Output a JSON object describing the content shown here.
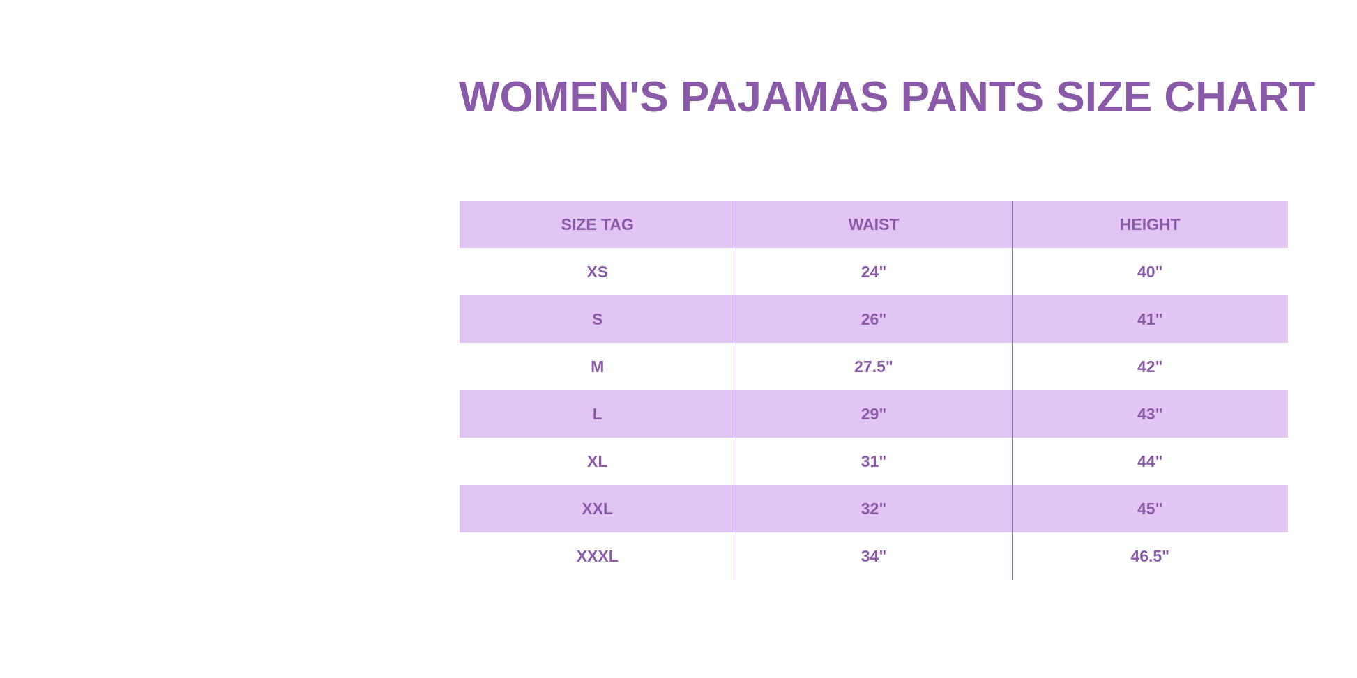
{
  "title": "WOMEN'S PAJAMAS PANTS SIZE CHART",
  "colors": {
    "accent": "#8a5aa9",
    "row_fill": "#e1c6f4"
  },
  "table": {
    "headers": [
      "SIZE TAG",
      "WAIST",
      "HEIGHT"
    ],
    "rows": [
      [
        "XS",
        "24\"",
        "40\""
      ],
      [
        "S",
        "26\"",
        "41\""
      ],
      [
        "M",
        "27.5\"",
        "42\""
      ],
      [
        "L",
        "29\"",
        "43\""
      ],
      [
        "XL",
        "31\"",
        "44\""
      ],
      [
        "XXL",
        "32\"",
        "45\""
      ],
      [
        "XXXL",
        "34\"",
        "46.5\""
      ]
    ]
  }
}
